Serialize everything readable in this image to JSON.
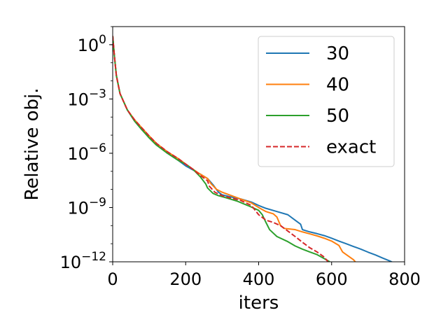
{
  "chart_data": {
    "type": "line",
    "xlabel": "iters",
    "ylabel": "Relative obj.",
    "xlim": [
      0,
      800
    ],
    "ylim": [
      1e-12,
      10
    ],
    "yscale": "log",
    "grid": false,
    "legend_position": "top-right",
    "xticks": [
      0,
      200,
      400,
      600,
      800
    ],
    "xtick_labels": [
      "0",
      "200",
      "400",
      "600",
      "800"
    ],
    "yticks": [
      1,
      0.001,
      1e-06,
      1e-09,
      1e-12
    ],
    "ytick_labels": [
      {
        "base": "10",
        "exp": "0"
      },
      {
        "base": "10",
        "exp": "−3"
      },
      {
        "base": "10",
        "exp": "−6"
      },
      {
        "base": "10",
        "exp": "−9"
      },
      {
        "base": "10",
        "exp": "−12"
      }
    ],
    "series": [
      {
        "name": "30",
        "color": "#1f77b4",
        "dash": "solid",
        "x": [
          0,
          5,
          10,
          20,
          40,
          60,
          80,
          100,
          120,
          150,
          180,
          200,
          220,
          240,
          260,
          275,
          290,
          300,
          320,
          350,
          380,
          400,
          420,
          450,
          480,
          500,
          515,
          520,
          540,
          560,
          580,
          600,
          620,
          640,
          660,
          680,
          700,
          720,
          740,
          760,
          780,
          800
        ],
        "y": [
          3,
          0.2,
          0.02,
          0.002,
          0.00025,
          6e-05,
          2e-05,
          8e-06,
          3e-06,
          1e-06,
          4e-07,
          2e-07,
          1.2e-07,
          7e-08,
          4e-08,
          1.8e-08,
          7e-09,
          5e-09,
          4e-09,
          3e-09,
          2e-09,
          1.3e-09,
          9e-10,
          6e-10,
          4e-10,
          2e-10,
          1.2e-10,
          6e-11,
          4.5e-11,
          3.6e-11,
          2.8e-11,
          2e-11,
          1.4e-11,
          1e-11,
          7e-12,
          5e-12,
          3.4e-12,
          2.4e-12,
          1.6e-12,
          1.1e-12,
          7e-13,
          5e-13
        ]
      },
      {
        "name": "40",
        "color": "#ff7f0e",
        "dash": "solid",
        "x": [
          0,
          5,
          10,
          20,
          40,
          60,
          80,
          100,
          120,
          150,
          180,
          200,
          220,
          240,
          260,
          270,
          285,
          300,
          320,
          350,
          380,
          400,
          420,
          440,
          450,
          460,
          470,
          500,
          520,
          540,
          560,
          580,
          600,
          620,
          630,
          640,
          660,
          665
        ],
        "y": [
          3,
          0.2,
          0.02,
          0.002,
          0.00025,
          7e-05,
          2.5e-05,
          9e-06,
          3.5e-06,
          1.2e-06,
          5e-07,
          2.5e-07,
          1.3e-07,
          7e-08,
          4e-08,
          2e-08,
          1e-08,
          7e-09,
          5e-09,
          3e-09,
          1.8e-09,
          1e-09,
          6e-10,
          4.5e-10,
          3e-10,
          1e-10,
          7e-11,
          6e-11,
          4.5e-11,
          3.5e-11,
          2.7e-11,
          2e-11,
          1.4e-11,
          8e-12,
          3.5e-12,
          2.5e-12,
          1.3e-12,
          1e-12
        ]
      },
      {
        "name": "50",
        "color": "#2ca02c",
        "dash": "solid",
        "x": [
          0,
          5,
          10,
          20,
          40,
          60,
          80,
          100,
          120,
          150,
          180,
          200,
          220,
          240,
          255,
          260,
          275,
          290,
          310,
          340,
          370,
          400,
          410,
          420,
          430,
          450,
          480,
          500,
          520,
          540,
          560,
          580,
          595
        ],
        "y": [
          3,
          0.2,
          0.02,
          0.002,
          0.00025,
          6e-05,
          2e-05,
          7e-06,
          2.8e-06,
          1e-06,
          4e-07,
          2.5e-07,
          1.3e-07,
          5e-08,
          2e-08,
          1.2e-08,
          6e-09,
          4.5e-09,
          3.5e-09,
          2.3e-09,
          1.3e-09,
          7e-10,
          4e-10,
          1.5e-10,
          6e-11,
          2.5e-11,
          1.3e-11,
          7.5e-12,
          5e-12,
          3.5e-12,
          2.5e-12,
          1.5e-12,
          1e-12
        ]
      },
      {
        "name": "exact",
        "color": "#d62728",
        "dash": "dashed",
        "x": [
          0,
          5,
          10,
          20,
          40,
          60,
          80,
          100,
          120,
          150,
          180,
          200,
          220,
          240,
          260,
          265,
          280,
          300,
          320,
          350,
          380,
          400,
          420,
          440,
          460,
          480,
          500,
          520,
          540,
          560,
          580,
          590
        ],
        "y": [
          3,
          0.2,
          0.02,
          0.002,
          0.00025,
          7e-05,
          2.5e-05,
          9e-06,
          3.5e-06,
          1.2e-06,
          5e-07,
          2.5e-07,
          1.3e-07,
          6e-08,
          3e-08,
          1.5e-08,
          7e-09,
          4.5e-09,
          3.5e-09,
          2.5e-09,
          1.3e-09,
          4e-10,
          2e-10,
          1.5e-10,
          1e-10,
          5e-11,
          2.5e-11,
          1.2e-11,
          6e-12,
          3.5e-12,
          1.8e-12,
          1e-12
        ]
      }
    ]
  }
}
